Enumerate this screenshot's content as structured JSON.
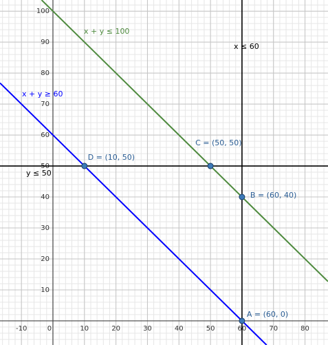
{
  "chart_data": {
    "type": "line",
    "xlim": [
      -16.8,
      87.3
    ],
    "ylim": [
      -7.8,
      103.6
    ],
    "xticks": [
      -10,
      0,
      10,
      20,
      30,
      40,
      50,
      60,
      70,
      80
    ],
    "yticks": [
      10,
      20,
      30,
      40,
      50,
      60,
      70,
      80,
      90,
      100
    ],
    "grid": true,
    "minor_grid_step": 2,
    "series": [
      {
        "name": "x + y ≤ 100",
        "color": "#4e8a3e",
        "x": [
          -3.6,
          87.3
        ],
        "values": [
          103.6,
          12.7
        ]
      },
      {
        "name": "x + y ≥ 60",
        "color": "#0000ff",
        "x": [
          -16.8,
          67.8
        ],
        "values": [
          76.8,
          -7.8
        ]
      },
      {
        "name": "x ≤ 60",
        "color": "#000000",
        "x": [
          60,
          60
        ],
        "values": [
          103.6,
          -7.8
        ]
      },
      {
        "name": "y ≤ 50",
        "color": "#000000",
        "x": [
          -16.8,
          87.3
        ],
        "values": [
          50,
          50
        ]
      }
    ],
    "points": [
      {
        "label": "A = (60, 0)",
        "x": 60,
        "y": 0
      },
      {
        "label": "B = (60, 40)",
        "x": 60,
        "y": 40
      },
      {
        "label": "C = (50, 50)",
        "x": 50,
        "y": 50
      },
      {
        "label": "D = (10, 50)",
        "x": 10,
        "y": 50
      }
    ],
    "point_color": "#3d7ab8"
  }
}
